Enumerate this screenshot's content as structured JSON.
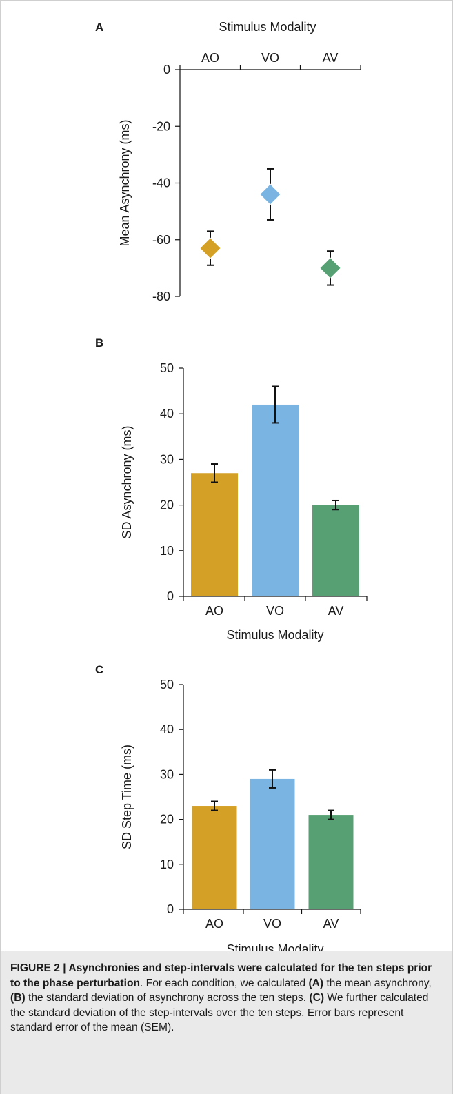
{
  "chart_data": [
    {
      "type": "scatter",
      "panel": "A",
      "title": "Stimulus Modality",
      "ylabel": "Mean Asynchrony (ms)",
      "categories": [
        "AO",
        "VO",
        "AV"
      ],
      "values": [
        -63,
        -44,
        -70
      ],
      "errors": [
        6,
        9,
        6
      ],
      "colors": [
        "#D4A025",
        "#79B4E3",
        "#57A074"
      ],
      "ylim": [
        -80,
        0
      ],
      "yticks": [
        "0",
        "-20",
        "-40",
        "-60",
        "-80"
      ],
      "grid": false
    },
    {
      "type": "bar",
      "panel": "B",
      "xlabel": "Stimulus Modality",
      "ylabel": "SD Asynchrony (ms)",
      "categories": [
        "AO",
        "VO",
        "AV"
      ],
      "values": [
        27,
        42,
        20
      ],
      "errors": [
        2,
        4,
        1
      ],
      "colors": [
        "#D4A025",
        "#79B4E3",
        "#57A074"
      ],
      "ylim": [
        0,
        50
      ],
      "yticks": [
        "0",
        "10",
        "20",
        "30",
        "40",
        "50"
      ],
      "grid": false
    },
    {
      "type": "bar",
      "panel": "C",
      "xlabel": "Stimulus Modality",
      "ylabel": "SD Step Time (ms)",
      "categories": [
        "AO",
        "VO",
        "AV"
      ],
      "values": [
        23,
        29,
        21
      ],
      "errors": [
        1,
        2,
        1
      ],
      "colors": [
        "#D4A025",
        "#79B4E3",
        "#57A074"
      ],
      "ylim": [
        0,
        50
      ],
      "yticks": [
        "0",
        "10",
        "20",
        "30",
        "40",
        "50"
      ],
      "grid": false
    }
  ],
  "caption": {
    "lead": "FIGURE 2 | Asynchronies and step-intervals were calculated for the ten steps prior to the phase perturbation",
    "part1": ". For each condition, we calculated ",
    "tagA": "(A)",
    "part2": " the mean asynchrony, ",
    "tagB": "(B)",
    "part3": " the standard deviation of asynchrony across the ten steps. ",
    "tagC": "(C)",
    "part4": " We further calculated the standard deviation of the step-intervals over the ten steps. Error bars represent standard error of the mean (SEM)."
  }
}
